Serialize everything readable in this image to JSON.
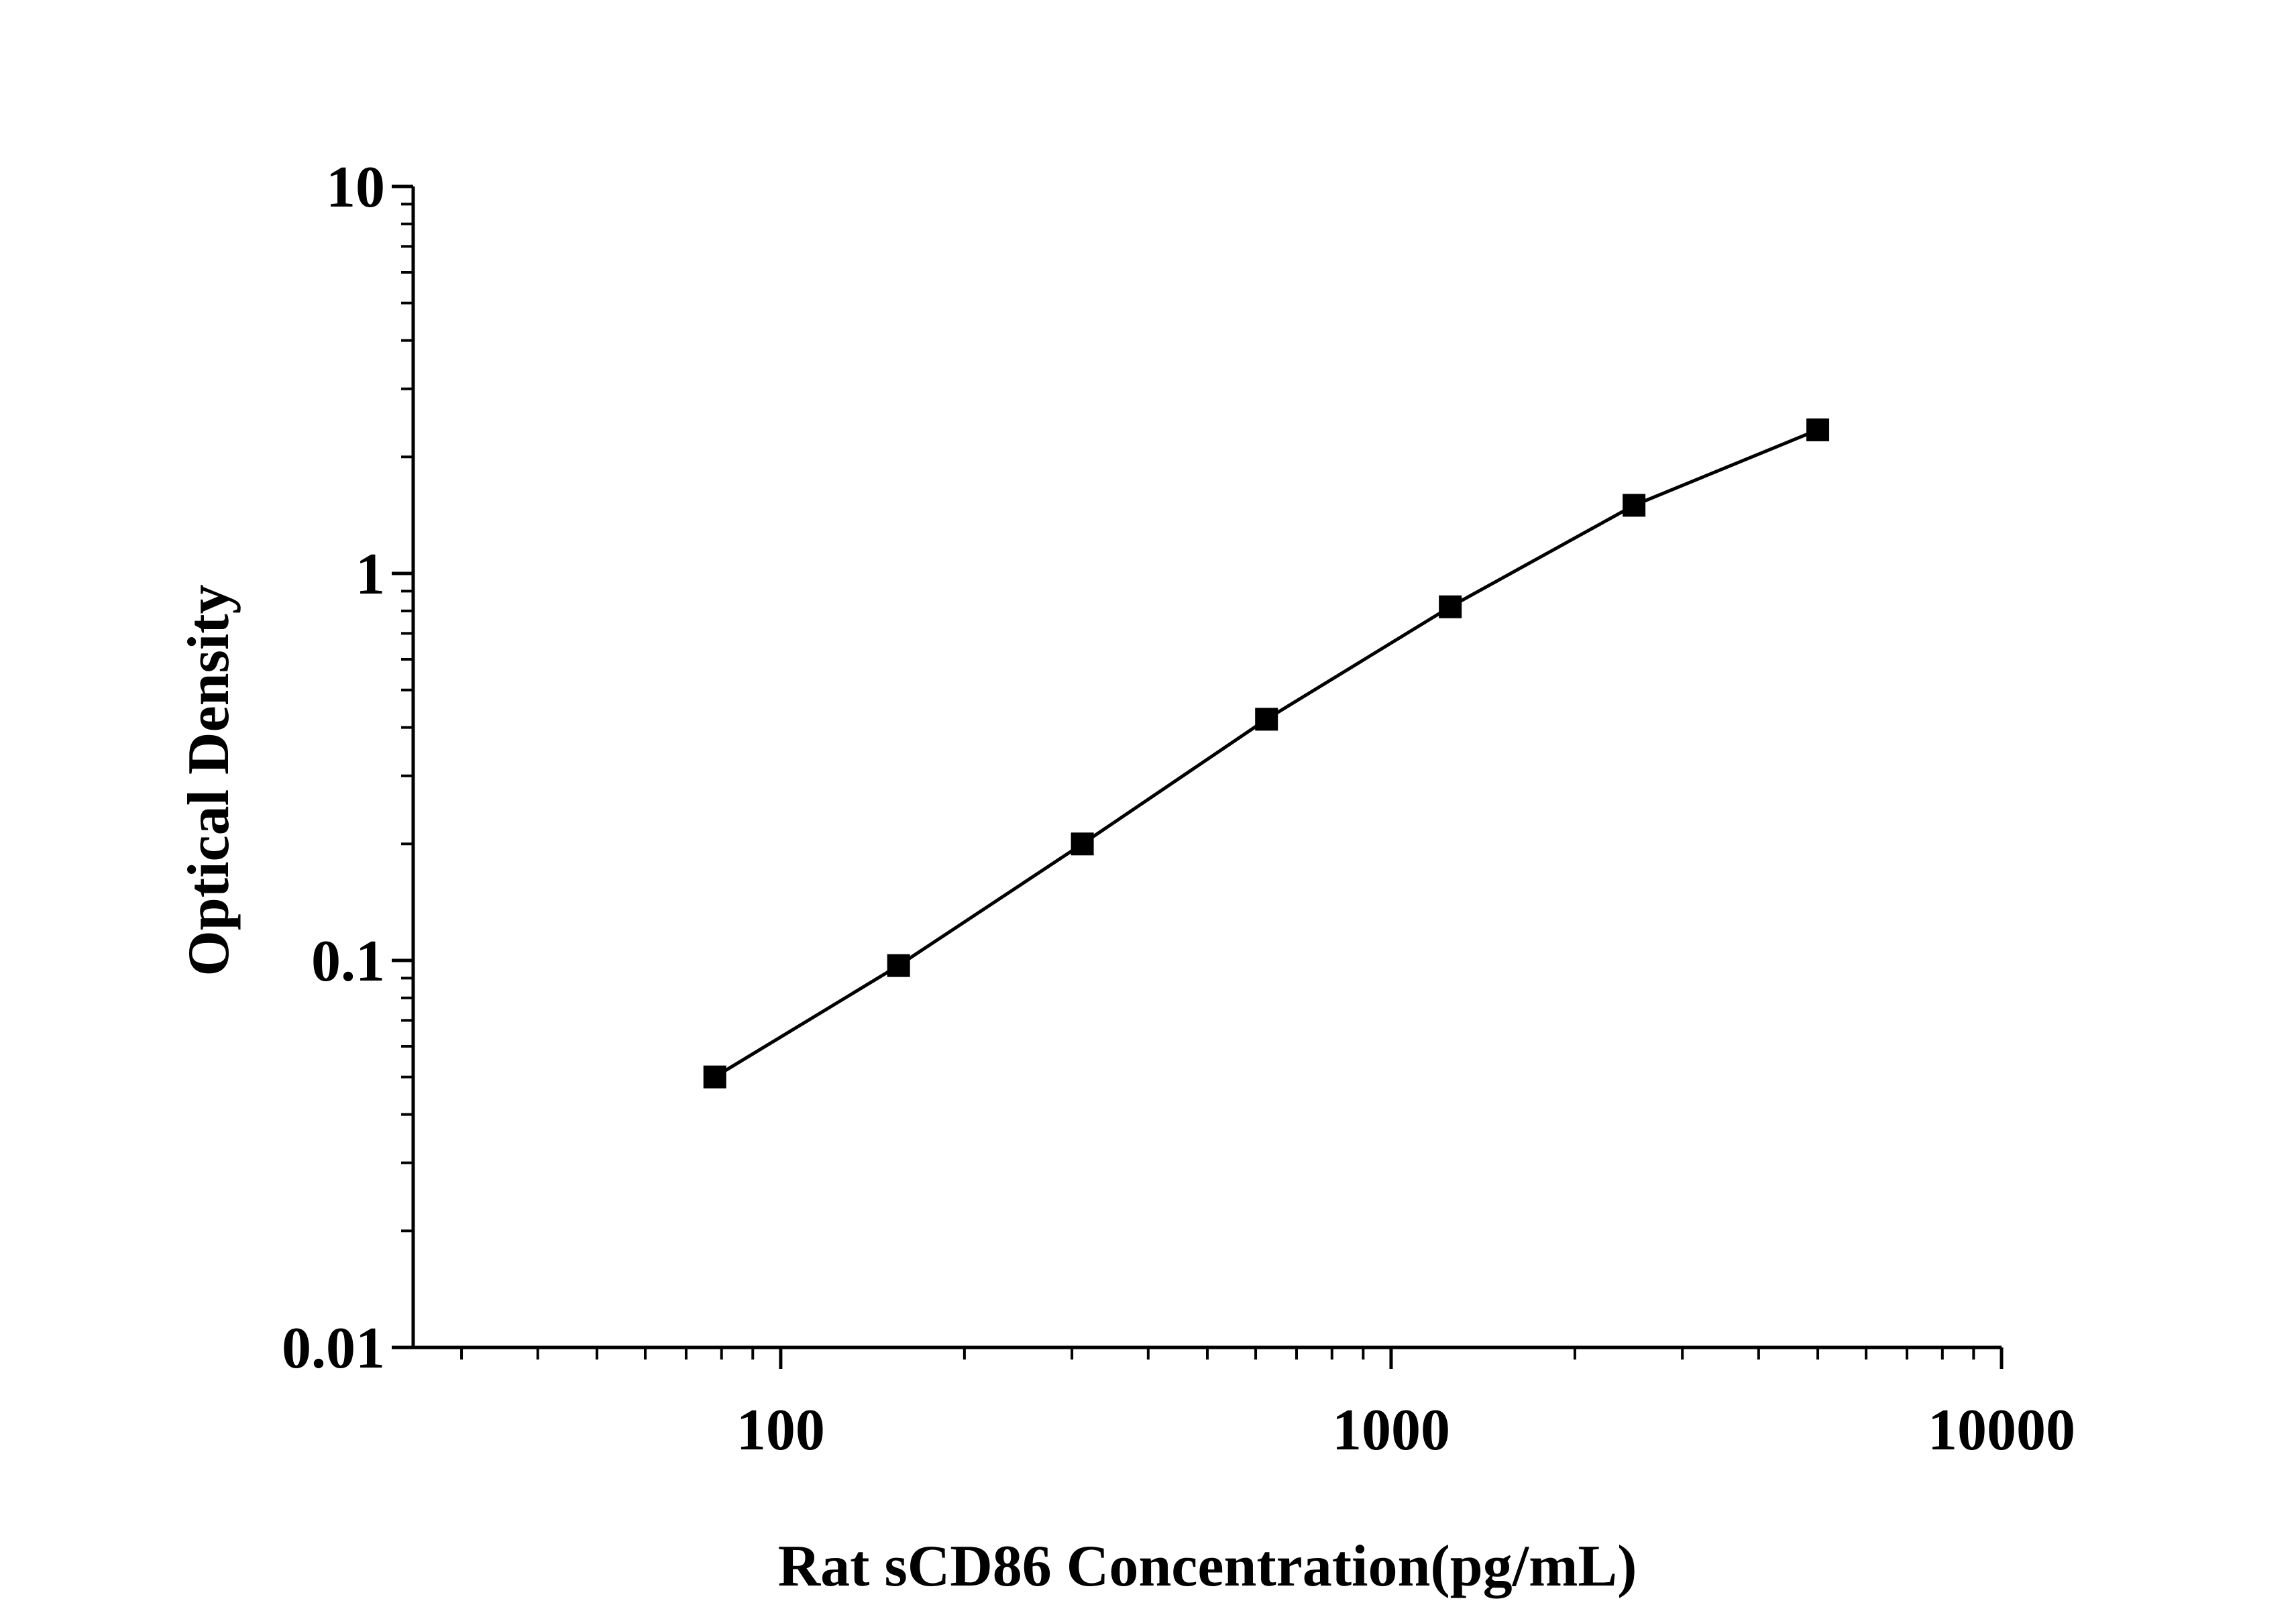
{
  "chart_data": {
    "type": "line",
    "xlabel": "Rat sCD86 Concentration(pg/mL)",
    "ylabel": "Optical Density",
    "xscale": "log",
    "yscale": "log",
    "xlim": [
      25,
      10000
    ],
    "ylim": [
      0.01,
      10
    ],
    "x_ticks": [
      100,
      1000,
      10000
    ],
    "x_tick_labels": [
      "100",
      "1000",
      "10000"
    ],
    "y_ticks": [
      0.01,
      0.1,
      1,
      10
    ],
    "y_tick_labels": [
      "0.01",
      "0.1",
      "1",
      "10"
    ],
    "grid": false,
    "series": [
      {
        "marker": "square",
        "color": "#000000",
        "x": [
          78,
          156,
          312,
          625,
          1250,
          2500,
          5000
        ],
        "y": [
          0.05,
          0.097,
          0.2,
          0.42,
          0.82,
          1.5,
          2.35
        ]
      }
    ]
  }
}
